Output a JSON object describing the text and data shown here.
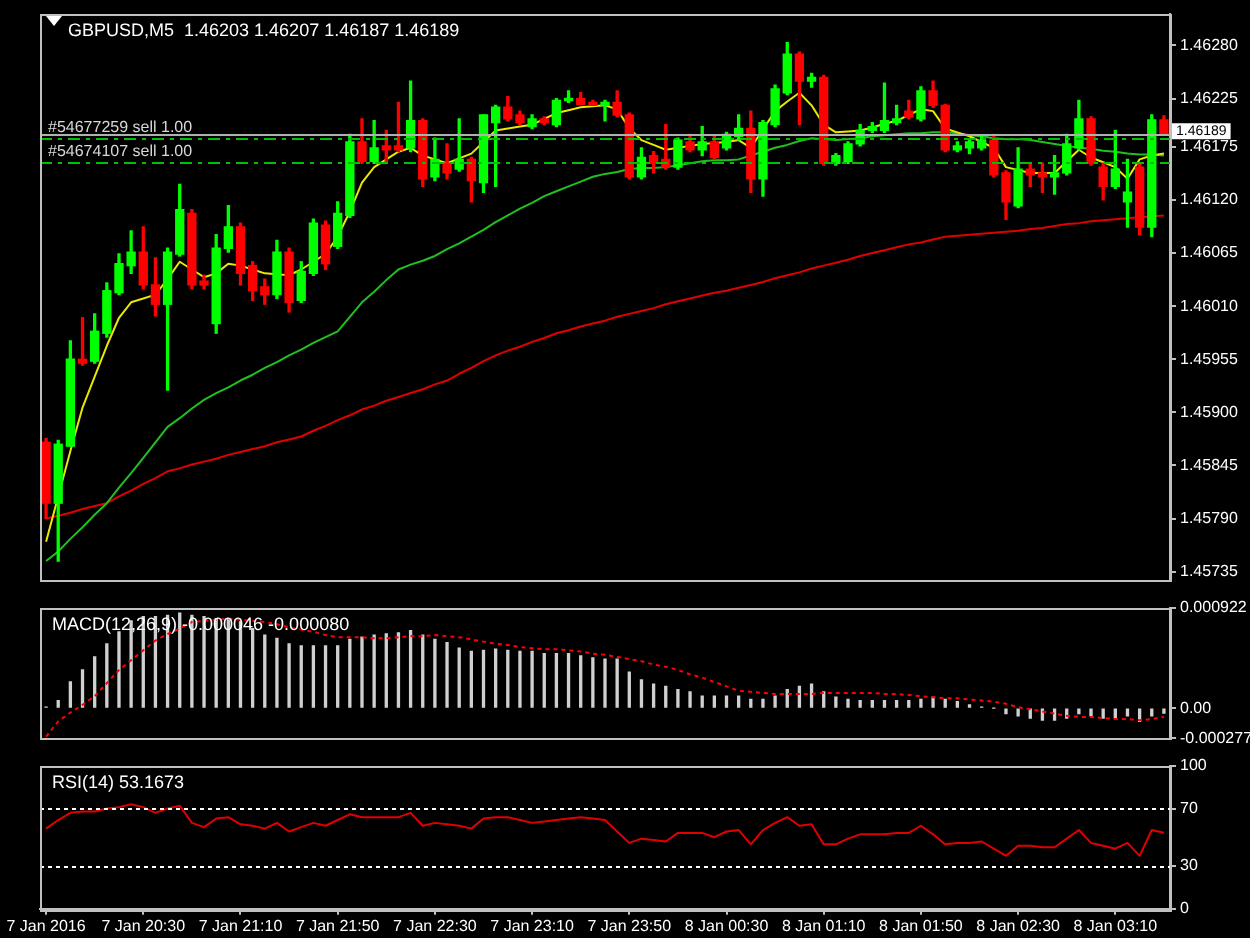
{
  "chart_data": [
    {
      "type": "candlestick",
      "title": "GBPUSD,M5  1.46203 1.46207 1.46187 1.46189",
      "tick_labels": "y",
      "categories": [
        null,
        null,
        null,
        null,
        null,
        null,
        null,
        null,
        null,
        null,
        null,
        null,
        null,
        null,
        null,
        null,
        null,
        null,
        null,
        null,
        null,
        null,
        null,
        null,
        null,
        null,
        null,
        null,
        null,
        null,
        null,
        null,
        null,
        null,
        null,
        null,
        null,
        null,
        null,
        null,
        null,
        null,
        null,
        null,
        null,
        null,
        null,
        null,
        null,
        null,
        null,
        null,
        null,
        null,
        null,
        null,
        null,
        null,
        null,
        null,
        null,
        null,
        null,
        null,
        null,
        null,
        null,
        null,
        null,
        null,
        null,
        null,
        null,
        null,
        null,
        null,
        null,
        null,
        null,
        null,
        null,
        null,
        null,
        null,
        null,
        null,
        null,
        null,
        null,
        null,
        null,
        null,
        null
      ],
      "ohlc": [
        [
          1.45869,
          1.45873,
          1.4579,
          1.45806
        ],
        [
          1.45806,
          1.45871,
          1.45746,
          1.45867
        ],
        [
          1.45865,
          1.45974,
          1.45865,
          1.45955
        ],
        [
          1.45955,
          1.45998,
          1.45949,
          1.45951
        ],
        [
          1.45953,
          1.46002,
          1.45951,
          1.45984
        ],
        [
          1.45982,
          1.46034,
          1.45978,
          1.46026
        ],
        [
          1.46024,
          1.46064,
          1.46022,
          1.46054
        ],
        [
          1.46052,
          1.46088,
          1.46044,
          1.46066
        ],
        [
          1.46066,
          1.46092,
          1.46028,
          1.46032
        ],
        [
          1.46032,
          1.4606,
          1.46,
          1.46012
        ],
        [
          1.46012,
          1.4607,
          1.45923,
          1.46066
        ],
        [
          1.46064,
          1.46136,
          1.46062,
          1.4611
        ],
        [
          1.46106,
          1.4611,
          1.46028,
          1.46032
        ],
        [
          1.46036,
          1.46042,
          1.46028,
          1.46032
        ],
        [
          1.45992,
          1.46084,
          1.45982,
          1.4607
        ],
        [
          1.4607,
          1.46114,
          1.46066,
          1.46092
        ],
        [
          1.46092,
          1.46096,
          1.46032,
          1.46044
        ],
        [
          1.46052,
          1.46056,
          1.46016,
          1.46026
        ],
        [
          1.4603,
          1.46038,
          1.46012,
          1.46022
        ],
        [
          1.46022,
          1.46078,
          1.46018,
          1.46066
        ],
        [
          1.46066,
          1.4607,
          1.46004,
          1.46014
        ],
        [
          1.46016,
          1.46056,
          1.46014,
          1.46046
        ],
        [
          1.46044,
          1.461,
          1.46042,
          1.46096
        ],
        [
          1.46094,
          1.46098,
          1.46048,
          1.46054
        ],
        [
          1.46072,
          1.46118,
          1.4607,
          1.46106
        ],
        [
          1.46104,
          1.46188,
          1.46102,
          1.4618
        ],
        [
          1.4618,
          1.46204,
          1.46158,
          1.4616
        ],
        [
          1.4616,
          1.46202,
          1.46158,
          1.46174
        ],
        [
          1.46176,
          1.46192,
          1.46158,
          1.46172
        ],
        [
          1.46176,
          1.46221,
          1.4617,
          1.46172
        ],
        [
          1.46174,
          1.46243,
          1.4617,
          1.46202
        ],
        [
          1.46202,
          1.46204,
          1.46134,
          1.46142
        ],
        [
          1.46144,
          1.46184,
          1.4614,
          1.46162
        ],
        [
          1.46158,
          1.46178,
          1.46142,
          1.46148
        ],
        [
          1.46152,
          1.46204,
          1.4615,
          1.46162
        ],
        [
          1.46162,
          1.46164,
          1.46118,
          1.4614
        ],
        [
          1.46138,
          1.46208,
          1.46128,
          1.46208
        ],
        [
          1.462,
          1.46218,
          1.46134,
          1.46216
        ],
        [
          1.46216,
          1.46227,
          1.46202,
          1.46204
        ],
        [
          1.46208,
          1.46212,
          1.46198,
          1.462
        ],
        [
          1.46196,
          1.46208,
          1.46194,
          1.46204
        ],
        [
          1.46204,
          1.46206,
          1.46198,
          1.462
        ],
        [
          1.46198,
          1.46225,
          1.46196,
          1.46223
        ],
        [
          1.46223,
          1.46233,
          1.46221,
          1.46225
        ],
        [
          1.46225,
          1.46231,
          1.46219,
          1.46219
        ],
        [
          1.46221,
          1.46223,
          1.46218,
          1.46218
        ],
        [
          1.46218,
          1.46223,
          1.46202,
          1.46221
        ],
        [
          1.46221,
          1.46233,
          1.46206,
          1.46208
        ],
        [
          1.46208,
          1.4621,
          1.46142,
          1.46144
        ],
        [
          1.46144,
          1.46174,
          1.46142,
          1.46164
        ],
        [
          1.46166,
          1.4617,
          1.46148,
          1.46158
        ],
        [
          1.46162,
          1.46198,
          1.46152,
          1.46154
        ],
        [
          1.46154,
          1.46184,
          1.46152,
          1.46182
        ],
        [
          1.4618,
          1.46188,
          1.4617,
          1.46172
        ],
        [
          1.46172,
          1.46196,
          1.46166,
          1.4618
        ],
        [
          1.4618,
          1.46186,
          1.46162,
          1.46164
        ],
        [
          1.46174,
          1.4619,
          1.46172,
          1.46188
        ],
        [
          1.46186,
          1.46208,
          1.46182,
          1.46194
        ],
        [
          1.46194,
          1.46212,
          1.46128,
          1.46142
        ],
        [
          1.46142,
          1.46202,
          1.46124,
          1.462
        ],
        [
          1.46198,
          1.46239,
          1.46196,
          1.46235
        ],
        [
          1.46231,
          1.46283,
          1.46229,
          1.46271
        ],
        [
          1.46271,
          1.46273,
          1.46198,
          1.46243
        ],
        [
          1.46243,
          1.46251,
          1.46237,
          1.46247
        ],
        [
          1.46247,
          1.46249,
          1.46156,
          1.46158
        ],
        [
          1.46158,
          1.46168,
          1.46156,
          1.46166
        ],
        [
          1.4616,
          1.4618,
          1.46158,
          1.46178
        ],
        [
          1.46178,
          1.46198,
          1.46176,
          1.46192
        ],
        [
          1.46192,
          1.462,
          1.4619,
          1.46196
        ],
        [
          1.46192,
          1.46241,
          1.4619,
          1.46202
        ],
        [
          1.462,
          1.46218,
          1.46198,
          1.46204
        ],
        [
          1.46212,
          1.46223,
          1.46204,
          1.46206
        ],
        [
          1.46204,
          1.46237,
          1.46202,
          1.46233
        ],
        [
          1.46233,
          1.46243,
          1.46216,
          1.46218
        ],
        [
          1.46218,
          1.46219,
          1.4617,
          1.46172
        ],
        [
          1.46172,
          1.4618,
          1.4617,
          1.46176
        ],
        [
          1.46174,
          1.46182,
          1.46168,
          1.4618
        ],
        [
          1.46174,
          1.46186,
          1.46172,
          1.46182
        ],
        [
          1.46182,
          1.46188,
          1.46144,
          1.46146
        ],
        [
          1.46148,
          1.4615,
          1.461,
          1.46118
        ],
        [
          1.46114,
          1.46174,
          1.46112,
          1.46152
        ],
        [
          1.46152,
          1.46158,
          1.46134,
          1.46146
        ],
        [
          1.46148,
          1.46158,
          1.46128,
          1.46144
        ],
        [
          1.46144,
          1.46166,
          1.46126,
          1.46148
        ],
        [
          1.46148,
          1.46188,
          1.46146,
          1.46178
        ],
        [
          1.46174,
          1.46223,
          1.46172,
          1.46204
        ],
        [
          1.46204,
          1.46206,
          1.46156,
          1.46158
        ],
        [
          1.46154,
          1.46158,
          1.4612,
          1.46134
        ],
        [
          1.46134,
          1.46192,
          1.46132,
          1.46152
        ],
        [
          1.46118,
          1.46162,
          1.46092,
          1.46128
        ],
        [
          1.46154,
          1.46158,
          1.46084,
          1.46092
        ],
        [
          1.46092,
          1.46208,
          1.46082,
          1.46203
        ],
        [
          1.46203,
          1.46207,
          1.46187,
          1.46189
        ]
      ],
      "series": [
        {
          "type": "line",
          "color": "#e8e800",
          "values": [
            1.45766,
            null,
            1.4586,
            1.45905,
            1.45937,
            1.45969,
            1.45998,
            1.46014,
            1.46018,
            1.46022,
            1.46038,
            1.46056,
            1.46048,
            1.4604,
            1.46044,
            1.46054,
            1.46052,
            1.46048,
            1.46044,
            1.46043,
            1.46042,
            1.46048,
            1.46056,
            1.46064,
            1.46082,
            1.46108,
            1.46138,
            1.46154,
            1.46162,
            1.4617,
            1.46174,
            1.46166,
            1.46162,
            1.46158,
            1.46163,
            1.46168,
            1.4618,
            1.46192,
            1.46194,
            1.46196,
            1.46198,
            1.46204,
            1.4621,
            1.46213,
            1.46216,
            1.46217,
            1.46218,
            1.46214,
            1.46194,
            1.46182,
            1.46177,
            1.46172,
            1.46174,
            1.46176,
            1.46178,
            1.46179,
            1.4618,
            1.46182,
            1.46174,
            1.46193,
            1.46212,
            1.46222,
            1.46231,
            1.46218,
            1.46198,
            1.4619,
            1.46191,
            1.46192,
            1.46195,
            1.46199,
            1.46202,
            1.46208,
            1.46214,
            1.46212,
            1.46194,
            1.4619,
            1.46186,
            1.4618,
            1.46174,
            1.46154,
            1.46151,
            1.46148,
            1.46148,
            1.46148,
            1.4616,
            1.46172,
            1.46164,
            1.46159,
            1.46154,
            1.46142,
            1.46162,
            1.46166,
            1.46168
          ]
        },
        {
          "type": "line",
          "color": "#20c020",
          "values": [
            1.45746,
            1.45756,
            1.45769,
            1.45781,
            1.45794,
            1.45806,
            1.45822,
            1.45837,
            1.45853,
            1.45869,
            1.45885,
            1.45894,
            1.45904,
            1.45913,
            1.4592,
            1.45926,
            1.45933,
            1.45939,
            1.45946,
            1.45952,
            1.45959,
            1.45965,
            1.45972,
            1.45978,
            1.45984,
            1.45999,
            1.46014,
            1.46025,
            1.46037,
            1.46048,
            1.46053,
            1.46057,
            1.46062,
            1.46069,
            1.46075,
            1.46082,
            1.46089,
            1.46097,
            1.46104,
            1.46111,
            1.46117,
            1.46124,
            1.46129,
            1.46134,
            1.46139,
            1.46144,
            1.46147,
            1.46149,
            1.46152,
            1.46153,
            1.46153,
            1.46154,
            1.46156,
            1.46158,
            1.4616,
            1.46161,
            1.46161,
            1.46162,
            1.46166,
            1.4617,
            1.46174,
            1.46177,
            1.46181,
            1.46184,
            1.46183,
            1.46182,
            1.46183,
            1.46184,
            1.46186,
            1.46187,
            1.46188,
            1.46189,
            1.46189,
            1.4619,
            1.4619,
            1.46189,
            1.46187,
            1.46186,
            1.46184,
            1.46183,
            1.46183,
            1.46182,
            1.4618,
            1.46178,
            1.46176,
            1.46174,
            1.46173,
            1.46171,
            1.4617,
            1.46168,
            1.46167,
            1.46167,
            1.46166
          ]
        },
        {
          "type": "line",
          "color": "#e00000",
          "values": [
            1.4579,
            1.45793,
            1.45796,
            1.458,
            1.45803,
            1.45806,
            1.45813,
            1.45819,
            1.45826,
            1.45832,
            1.45839,
            1.45842,
            1.45846,
            1.45849,
            1.45852,
            1.45856,
            1.45859,
            1.45862,
            1.45865,
            1.45869,
            1.45872,
            1.45875,
            1.45881,
            1.45886,
            1.45892,
            1.45897,
            1.45903,
            1.45907,
            1.45912,
            1.45916,
            1.4592,
            1.45924,
            1.45929,
            1.45933,
            1.4594,
            1.45946,
            1.45953,
            1.45959,
            1.45964,
            1.45968,
            1.45973,
            1.45977,
            1.45982,
            1.45985,
            1.45989,
            1.45992,
            1.45995,
            1.45999,
            1.46002,
            1.46005,
            1.46008,
            1.46012,
            1.46015,
            1.46018,
            1.46021,
            1.46024,
            1.46026,
            1.46029,
            1.46032,
            1.46035,
            1.46039,
            1.46042,
            1.46045,
            1.46049,
            1.46052,
            1.46055,
            1.46058,
            1.46062,
            1.46065,
            1.46068,
            1.46071,
            1.46074,
            1.46076,
            1.46079,
            1.46082,
            1.46083,
            1.46084,
            1.46085,
            1.46086,
            1.46087,
            1.46088,
            1.4609,
            1.46091,
            1.46093,
            1.46095,
            1.46096,
            1.46098,
            1.46099,
            1.461,
            1.46101,
            1.46102,
            1.46103,
            1.46104
          ]
        }
      ],
      "ref_lines": [
        {
          "axis": "y",
          "value": 1.46189,
          "label": "1.46189",
          "color": "#b0b0b0",
          "line_style": "solid"
        },
        {
          "axis": "y",
          "value": 1.46184,
          "label": "#54677259 sell 1.00",
          "color": "#00c000",
          "line_style": "dashed"
        },
        {
          "axis": "y",
          "value": 1.46159,
          "label": "#54674107 sell 1.00",
          "color": "#00c000",
          "line_style": "dashed"
        }
      ],
      "ylim": [
        1.45726,
        1.46313
      ],
      "yticks": [
        {
          "value": 1.4628,
          "label": "1.46280"
        },
        1.46225,
        1.46175,
        {
          "value": 1.4612,
          "label": "1.46120"
        },
        1.46065,
        {
          "value": 1.4601,
          "label": "1.46010"
        },
        1.45955,
        {
          "value": 1.459,
          "label": "1.45900"
        },
        1.45845,
        {
          "value": 1.4579,
          "label": "1.45790"
        },
        1.45735
      ]
    },
    {
      "type": "bar",
      "title": "MACD(12,26,9) -0.000046 -0.000080",
      "tick_labels": "y",
      "categories": [
        null,
        null,
        null,
        null,
        null,
        null,
        null,
        null,
        null,
        null,
        null,
        null,
        null,
        null,
        null,
        null,
        null,
        null,
        null,
        null,
        null,
        null,
        null,
        null,
        null,
        null,
        null,
        null,
        null,
        null,
        null,
        null,
        null,
        null,
        null,
        null,
        null,
        null,
        null,
        null,
        null,
        null,
        null,
        null,
        null,
        null,
        null,
        null,
        null,
        null,
        null,
        null,
        null,
        null,
        null,
        null,
        null,
        null,
        null,
        null,
        null,
        null,
        null,
        null,
        null,
        null,
        null,
        null,
        null,
        null,
        null,
        null,
        null,
        null,
        null,
        null,
        null,
        null,
        null,
        null,
        null,
        null,
        null,
        null,
        null,
        null,
        null,
        null,
        null,
        null,
        null,
        null,
        null
      ],
      "series": [
        {
          "type": "bar",
          "color": "#d0d0d0",
          "values": [
            1e-05,
            7e-05,
            0.00024,
            0.00035,
            0.00047,
            0.00059,
            0.0007,
            0.0008,
            0.00084,
            0.00084,
            0.00085,
            0.00087,
            0.00085,
            0.00084,
            0.00082,
            0.00082,
            0.00079,
            0.00073,
            0.00067,
            0.00064,
            0.00059,
            0.00057,
            0.00057,
            0.00057,
            0.00057,
            0.00063,
            0.00065,
            0.00067,
            0.00068,
            0.00069,
            0.00071,
            0.00067,
            0.00063,
            0.0006,
            0.00055,
            0.00052,
            0.00053,
            0.00054,
            0.00053,
            0.00052,
            0.00052,
            0.0005,
            0.0005,
            0.0005,
            0.00048,
            0.00046,
            0.00045,
            0.00045,
            0.00033,
            0.00026,
            0.00022,
            0.0002,
            0.00017,
            0.00015,
            0.00011,
            0.00011,
            0.00011,
            0.00011,
            8e-05,
            8e-05,
            0.00011,
            0.00017,
            0.0002,
            0.00022,
            0.00015,
            0.0001,
            8e-05,
            7e-05,
            7e-05,
            7e-05,
            7e-05,
            7e-05,
            8e-05,
            0.0001,
            8e-05,
            6e-05,
            3e-05,
            1e-05,
            0,
            -5e-05,
            -7e-05,
            -9e-05,
            -0.00011,
            -0.00011,
            -9e-05,
            -5e-05,
            -7e-05,
            -9e-05,
            -9e-05,
            -7e-05,
            -0.00012,
            -7e-05,
            -4.6e-05
          ]
        },
        {
          "type": "line",
          "color": "#ff0000",
          "line_style": "dotted",
          "values": [
            -0.00026,
            -0.00012,
            -4e-05,
            3e-05,
            0.00011,
            0.00023,
            0.00035,
            0.00044,
            0.00053,
            0.00062,
            0.00068,
            0.00073,
            0.00079,
            0.0008,
            0.00081,
            0.00082,
            0.00081,
            0.0008,
            0.00079,
            0.00077,
            0.00074,
            0.00072,
            0.0007,
            0.00067,
            0.00065,
            0.00065,
            0.00065,
            0.00064,
            0.00064,
            0.00065,
            0.00066,
            0.00066,
            0.00067,
            0.00066,
            0.00065,
            0.00063,
            0.00061,
            0.00059,
            0.00058,
            0.00056,
            0.00055,
            0.00054,
            0.00054,
            0.00053,
            0.00052,
            0.0005,
            0.00049,
            0.00047,
            0.00045,
            0.00043,
            0.0004,
            0.00038,
            0.00035,
            0.00031,
            0.00028,
            0.00024,
            0.0002,
            0.00016,
            0.00015,
            0.00014,
            0.00013,
            0.00013,
            0.00013,
            0.00013,
            0.00014,
            0.00014,
            0.00014,
            0.00014,
            0.00014,
            0.00013,
            0.00013,
            0.00012,
            0.00011,
            0.0001,
            9e-05,
            9e-05,
            8e-05,
            7e-05,
            6e-05,
            4e-05,
            1e-05,
            -1e-05,
            -3e-05,
            -5e-05,
            -7e-05,
            -8e-05,
            -8e-05,
            -9e-05,
            -0.0001,
            -0.0001,
            -0.00011,
            -0.0001,
            -8e-05
          ]
        }
      ],
      "ylim": [
        -0.000277,
        0.000922
      ],
      "yticks": [
        0.000922,
        {
          "value": 0,
          "label": "0.00"
        },
        -0.000277
      ]
    },
    {
      "type": "line",
      "title": "RSI(14) 53.1673",
      "categories": [
        "7 Jan 2016",
        null,
        null,
        null,
        null,
        null,
        null,
        null,
        "7 Jan 20:30",
        null,
        null,
        null,
        null,
        null,
        null,
        null,
        "7 Jan 21:10",
        null,
        null,
        null,
        null,
        null,
        null,
        null,
        "7 Jan 21:50",
        null,
        null,
        null,
        null,
        null,
        null,
        null,
        "7 Jan 22:30",
        null,
        null,
        null,
        null,
        null,
        null,
        null,
        "7 Jan 23:10",
        null,
        null,
        null,
        null,
        null,
        null,
        null,
        "7 Jan 23:50",
        null,
        null,
        null,
        null,
        null,
        null,
        null,
        "8 Jan 00:30",
        null,
        null,
        null,
        null,
        null,
        null,
        null,
        "8 Jan 01:10",
        null,
        null,
        null,
        null,
        null,
        null,
        null,
        "8 Jan 01:50",
        null,
        null,
        null,
        null,
        null,
        null,
        null,
        "8 Jan 02:30",
        null,
        null,
        null,
        null,
        null,
        null,
        null,
        "8 Jan 03:10",
        null,
        null,
        null,
        null
      ],
      "series": [
        {
          "type": "line",
          "color": "#e00000",
          "values": [
            56,
            62,
            67,
            68,
            68,
            70,
            71,
            73,
            71,
            67,
            70,
            72,
            60,
            57,
            63,
            64,
            59,
            58,
            56,
            60,
            54,
            57,
            60,
            58,
            62,
            66,
            64,
            64,
            64,
            64,
            67,
            58,
            60,
            59,
            58,
            56,
            63,
            64,
            64,
            62,
            60,
            61,
            62,
            63,
            64,
            63,
            62,
            54,
            46,
            49,
            48,
            47,
            53,
            53,
            53,
            50,
            54,
            55,
            45,
            55,
            60,
            64,
            58,
            59,
            45,
            45,
            49,
            52,
            52,
            52,
            53,
            53,
            58,
            52,
            45,
            46,
            46,
            47,
            42,
            37,
            44,
            44,
            43,
            43,
            49,
            55,
            46,
            44,
            42,
            46,
            37,
            55,
            53.1673
          ]
        }
      ],
      "ref_lines": [
        {
          "axis": "y",
          "value": 70,
          "color": "#ffffff",
          "line_style": "dotted"
        },
        {
          "axis": "y",
          "value": 30,
          "color": "#ffffff",
          "line_style": "dotted"
        }
      ],
      "ylim": [
        0,
        100
      ],
      "yticks": [
        100,
        70,
        30,
        0
      ]
    }
  ]
}
